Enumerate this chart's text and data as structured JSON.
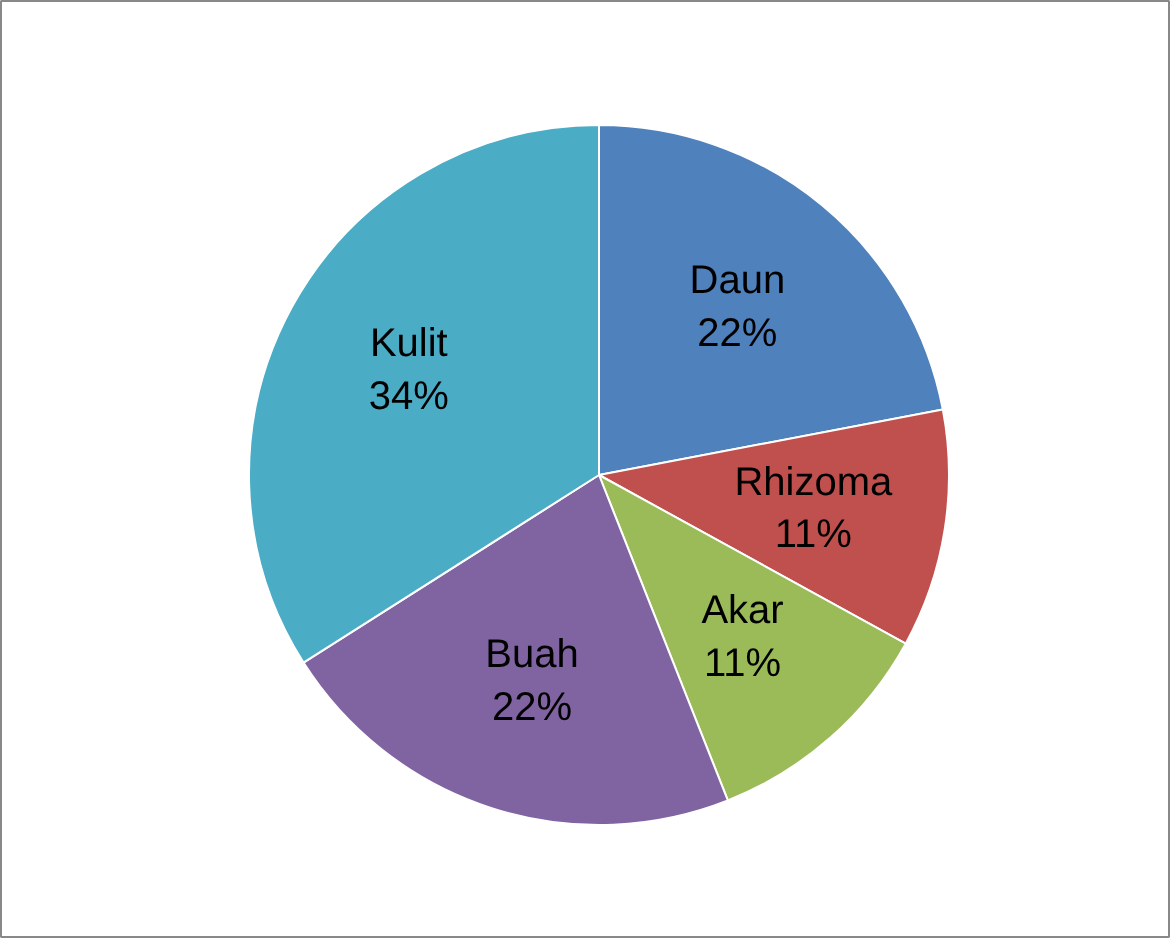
{
  "chart_data": {
    "type": "pie",
    "categories": [
      "Daun",
      "Rhizoma",
      "Akar",
      "Buah",
      "Kulit"
    ],
    "values": [
      22,
      11,
      11,
      22,
      34
    ],
    "value_labels": [
      "22%",
      "11%",
      "11%",
      "22%",
      "34%"
    ],
    "colors": [
      "#4f81bd",
      "#c0504d",
      "#9bbb59",
      "#8064a2",
      "#4bacc6"
    ]
  }
}
